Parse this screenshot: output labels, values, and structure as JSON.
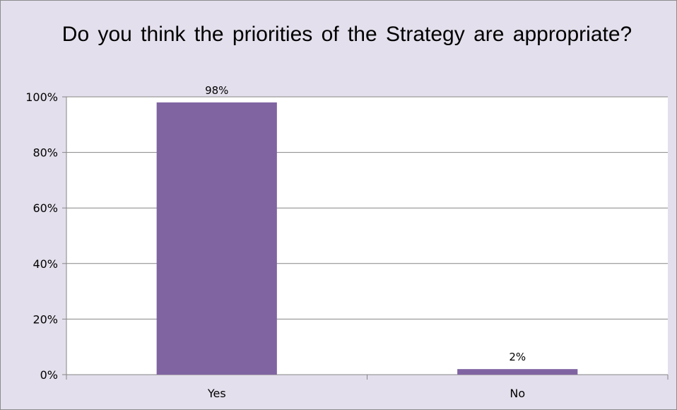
{
  "chart_data": {
    "type": "bar",
    "title": "Do you think the priorities of the Strategy are appropriate?",
    "xlabel": "",
    "ylabel": "",
    "categories": [
      "Yes",
      "No"
    ],
    "values": [
      98,
      2
    ],
    "data_labels": [
      "98%",
      "2%"
    ],
    "y_ticks": [
      {
        "value": 0,
        "label": "0%"
      },
      {
        "value": 20,
        "label": "20%"
      },
      {
        "value": 40,
        "label": "40%"
      },
      {
        "value": 60,
        "label": "60%"
      },
      {
        "value": 80,
        "label": "80%"
      },
      {
        "value": 100,
        "label": "100%"
      }
    ],
    "ylim": [
      0,
      100
    ],
    "grid": true,
    "legend": "none",
    "colors": {
      "bar": "#8064a2",
      "background": "#e4dfec",
      "plot_area": "#ffffff",
      "gridline": "#868686"
    }
  }
}
